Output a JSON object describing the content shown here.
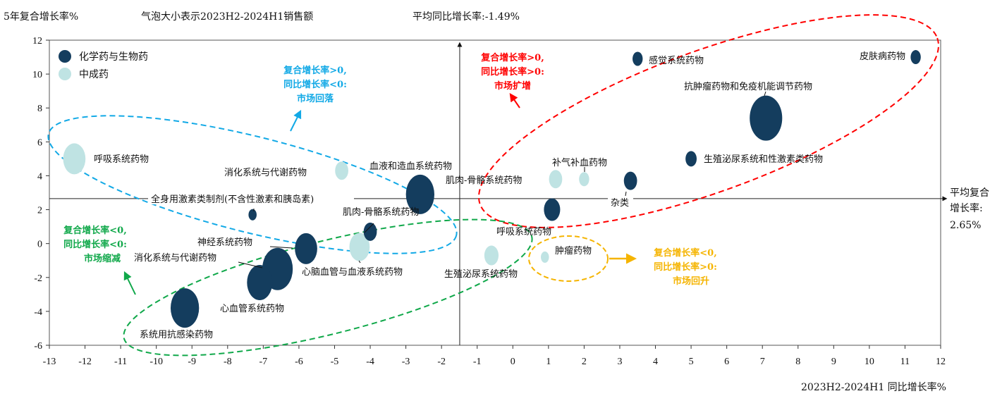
{
  "header": {
    "y_title": "5年复合增长率%",
    "bubble_note": "气泡大小表示2023H2-2024H1销售额",
    "avg_yoy": "平均同比增长率:-1.49%"
  },
  "avg_cagr_label": [
    "平均复合",
    "增长率:",
    "2.65%"
  ],
  "chart_data": {
    "type": "scatter",
    "subtype": "bubble",
    "xlabel": "2023H2-2024H1 同比增长率%",
    "ylabel": "5年复合增长率%",
    "xlim": [
      -13,
      12
    ],
    "ylim": [
      -6,
      12
    ],
    "xticks": [
      "-13",
      "-12",
      "-11",
      "-10",
      "-9",
      "-8",
      "-7",
      "-6",
      "-5",
      "-4",
      "-3",
      "-2",
      "-1",
      "0",
      "1",
      "2",
      "3",
      "4",
      "5",
      "6",
      "7",
      "8",
      "9",
      "10",
      "11",
      "12"
    ],
    "yticks": [
      "-6",
      "-4",
      "-2",
      "0",
      "2",
      "4",
      "6",
      "8",
      "10",
      "12"
    ],
    "reference_lines": {
      "x": -1.49,
      "y": 2.65
    },
    "legend": {
      "placement": "top-left",
      "entries": [
        "化学药与生物药",
        "中成药"
      ]
    },
    "colors": {
      "化学药与生物药": "#143d5e",
      "中成药": "#bfe3e3"
    },
    "points": [
      {
        "label": "皮肤病药物",
        "series": "化学药与生物药",
        "x": 11.3,
        "y": 11.0,
        "size": 10
      },
      {
        "label": "感觉系统药物",
        "series": "化学药与生物药",
        "x": 3.5,
        "y": 10.9,
        "size": 10
      },
      {
        "label": "抗肿瘤药物和免疫机能调节药物",
        "series": "化学药与生物药",
        "x": 7.1,
        "y": 7.4,
        "size": 32
      },
      {
        "label": "生殖泌尿系统和性激素类药物",
        "series": "化学药与生物药",
        "x": 5.0,
        "y": 5.0,
        "size": 11
      },
      {
        "label": "杂类",
        "series": "化学药与生物药",
        "x": 3.3,
        "y": 3.7,
        "size": 13
      },
      {
        "label": "补气补血药物",
        "series": "中成药",
        "x": 2.0,
        "y": 3.8,
        "size": 10
      },
      {
        "label": "肌肉-骨骼系统药物",
        "series": "中成药",
        "x": 1.2,
        "y": 3.8,
        "size": 13
      },
      {
        "label": "呼吸系统药物",
        "series": "化学药与生物药",
        "x": 1.1,
        "y": 2.0,
        "size": 16
      },
      {
        "label": "肿瘤药物",
        "series": "中成药",
        "x": 0.9,
        "y": -0.8,
        "size": 8
      },
      {
        "label": "生殖泌尿系统药物",
        "series": "中成药",
        "x": -0.6,
        "y": -0.7,
        "size": 14
      },
      {
        "label": "血液和造血系统药物",
        "series": "化学药与生物药",
        "x": -2.6,
        "y": 2.9,
        "size": 28
      },
      {
        "label": "消化系统与代谢药物",
        "series": "中成药",
        "x": -4.8,
        "y": 4.3,
        "size": 13
      },
      {
        "label": "呼吸系统药物",
        "series": "中成药",
        "x": -12.3,
        "y": 5.0,
        "size": 22
      },
      {
        "label": "全身用激素类制剂(不含性激素和胰岛素)",
        "series": "化学药与生物药",
        "x": -7.3,
        "y": 1.7,
        "size": 8
      },
      {
        "label": "肌肉-骨骼系统药物",
        "series": "化学药与生物药",
        "x": -4.0,
        "y": 0.7,
        "size": 13
      },
      {
        "label": "心脑血管与血液系统药物",
        "series": "中成药",
        "x": -4.3,
        "y": -0.2,
        "size": 20
      },
      {
        "label": "神经系统药物",
        "series": "化学药与生物药",
        "x": -5.8,
        "y": -0.3,
        "size": 22
      },
      {
        "label": "消化系统与代谢药物",
        "series": "化学药与生物药",
        "x": -6.6,
        "y": -1.5,
        "size": 30
      },
      {
        "label": "心血管系统药物",
        "series": "化学药与生物药",
        "x": -7.1,
        "y": -2.3,
        "size": 25
      },
      {
        "label": "系统用抗感染药物",
        "series": "化学药与生物药",
        "x": -9.2,
        "y": -3.8,
        "size": 28
      }
    ],
    "annotations": [
      {
        "name": "expand",
        "color": "#ff0000",
        "lines": [
          "复合增长率>0,",
          "同比增长率>0:",
          "市场扩增"
        ]
      },
      {
        "name": "fall",
        "color": "#12a9e6",
        "lines": [
          "复合增长率>0,",
          "同比增长率<0:",
          "市场回落"
        ]
      },
      {
        "name": "shrink",
        "color": "#10a84a",
        "lines": [
          "复合增长率<0,",
          "同比增长率<0:",
          "市场缩减"
        ]
      },
      {
        "name": "rebound",
        "color": "#f5b400",
        "lines": [
          "复合增长率<0,",
          "同比增长率>0:",
          "市场回升"
        ]
      }
    ]
  }
}
